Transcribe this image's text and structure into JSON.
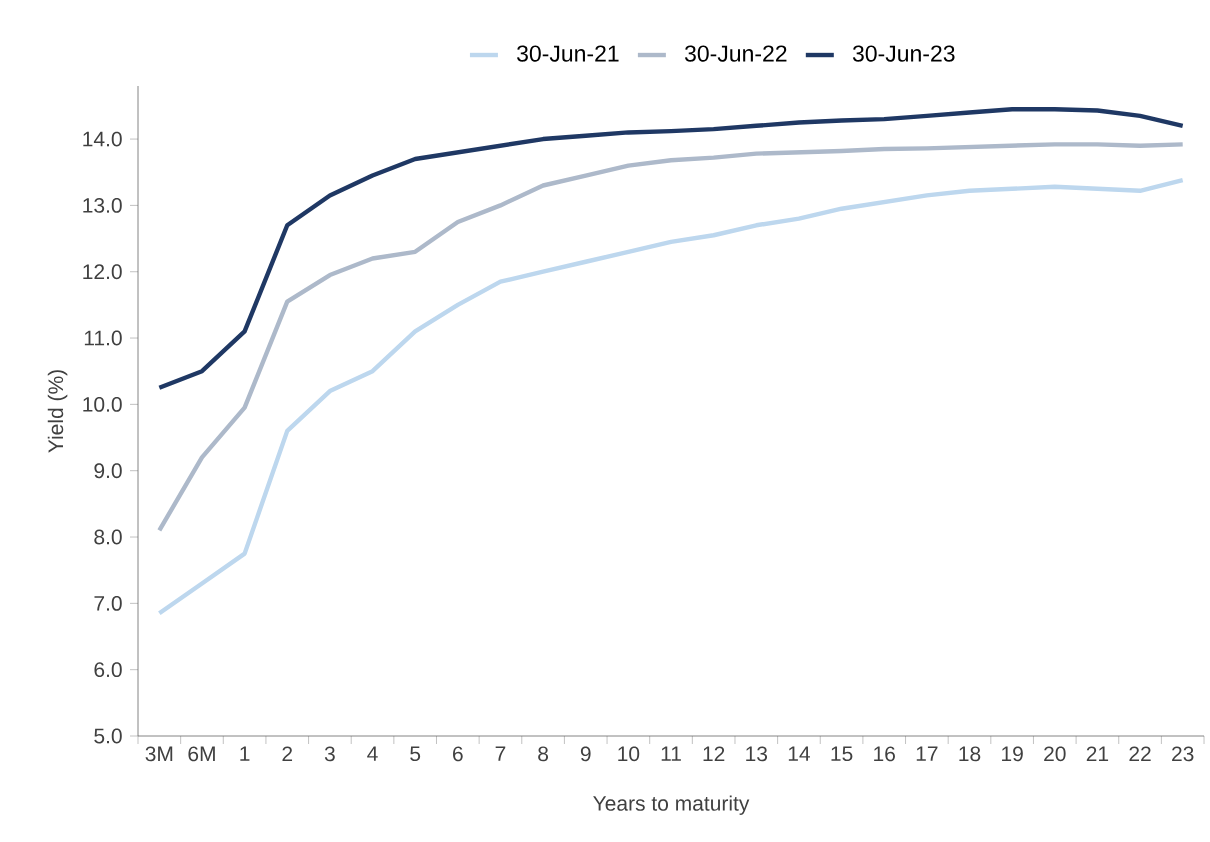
{
  "chart_data": {
    "type": "line",
    "xlabel": "Years to maturity",
    "ylabel": "Yield (%)",
    "categories": [
      "3M",
      "6M",
      "1",
      "2",
      "3",
      "4",
      "5",
      "6",
      "7",
      "8",
      "9",
      "10",
      "11",
      "12",
      "13",
      "14",
      "15",
      "16",
      "17",
      "18",
      "19",
      "20",
      "21",
      "22",
      "23"
    ],
    "series": [
      {
        "name": "30-Jun-21",
        "color": "#bdd7ee",
        "values": [
          6.85,
          7.3,
          7.75,
          9.6,
          10.2,
          10.5,
          11.1,
          11.5,
          11.85,
          12.0,
          12.15,
          12.3,
          12.45,
          12.55,
          12.7,
          12.8,
          12.95,
          13.05,
          13.15,
          13.22,
          13.25,
          13.28,
          13.25,
          13.22,
          13.38
        ]
      },
      {
        "name": "30-Jun-22",
        "color": "#adb9ca",
        "values": [
          8.1,
          9.2,
          9.95,
          11.55,
          11.95,
          12.2,
          12.3,
          12.75,
          13.0,
          13.3,
          13.45,
          13.6,
          13.68,
          13.72,
          13.78,
          13.8,
          13.82,
          13.85,
          13.86,
          13.88,
          13.9,
          13.92,
          13.92,
          13.9,
          13.92
        ]
      },
      {
        "name": "30-Jun-23",
        "color": "#1f3864",
        "values": [
          10.25,
          10.5,
          11.1,
          12.7,
          13.15,
          13.45,
          13.7,
          13.8,
          13.9,
          14.0,
          14.05,
          14.1,
          14.12,
          14.15,
          14.2,
          14.25,
          14.28,
          14.3,
          14.35,
          14.4,
          14.45,
          14.45,
          14.43,
          14.35,
          14.2
        ]
      }
    ],
    "ylim": [
      5,
      14.8
    ],
    "yticks": [
      {
        "value": 5,
        "label": "5.0"
      },
      {
        "value": 6,
        "label": "6.0"
      },
      {
        "value": 7,
        "label": "7.0"
      },
      {
        "value": 8,
        "label": "8.0"
      },
      {
        "value": 9,
        "label": "9.0"
      },
      {
        "value": 10,
        "label": "10.0"
      },
      {
        "value": 11,
        "label": "11.0"
      },
      {
        "value": 12,
        "label": "12.0"
      },
      {
        "value": 13,
        "label": "13.0"
      },
      {
        "value": 14,
        "label": "14.0"
      }
    ],
    "legend": "top",
    "grid": false,
    "marker": "none",
    "line_style": "solid"
  }
}
